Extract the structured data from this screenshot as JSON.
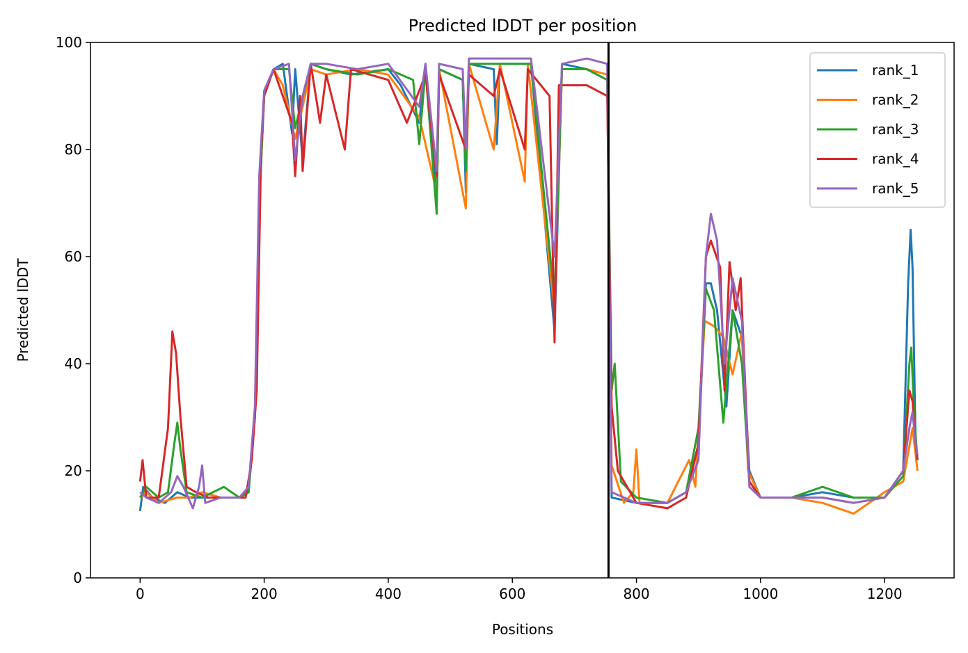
{
  "chart_data": {
    "type": "line",
    "title": "Predicted lDDT per position",
    "xlabel": "Positions",
    "ylabel": "Predicted lDDT",
    "xlim": [
      -80,
      1312
    ],
    "ylim": [
      0,
      100
    ],
    "xticks": [
      0,
      200,
      400,
      600,
      800,
      1000,
      1200
    ],
    "yticks": [
      0,
      20,
      40,
      60,
      80,
      100
    ],
    "grid": false,
    "legend_position": "top-right",
    "vertical_line": {
      "x": 755,
      "color": "#000000"
    },
    "series": [
      {
        "name": "rank_1",
        "color": "#1f77b4",
        "points": [
          [
            0,
            12.5
          ],
          [
            5,
            17
          ],
          [
            20,
            15
          ],
          [
            40,
            14
          ],
          [
            60,
            16
          ],
          [
            80,
            15
          ],
          [
            100,
            15
          ],
          [
            130,
            15
          ],
          [
            160,
            15
          ],
          [
            175,
            16
          ],
          [
            185,
            30
          ],
          [
            192,
            70
          ],
          [
            200,
            90
          ],
          [
            215,
            95
          ],
          [
            230,
            96
          ],
          [
            245,
            83
          ],
          [
            250,
            95
          ],
          [
            262,
            78
          ],
          [
            275,
            96
          ],
          [
            300,
            95
          ],
          [
            340,
            94
          ],
          [
            400,
            95
          ],
          [
            420,
            92
          ],
          [
            450,
            85
          ],
          [
            460,
            96
          ],
          [
            478,
            70
          ],
          [
            482,
            95
          ],
          [
            520,
            93
          ],
          [
            525,
            72
          ],
          [
            530,
            96
          ],
          [
            570,
            95
          ],
          [
            575,
            81
          ],
          [
            580,
            96
          ],
          [
            630,
            96
          ],
          [
            668,
            46
          ],
          [
            680,
            96
          ],
          [
            720,
            95
          ],
          [
            753,
            93
          ],
          [
            760,
            15
          ],
          [
            800,
            14
          ],
          [
            850,
            14
          ],
          [
            880,
            16
          ],
          [
            900,
            25
          ],
          [
            912,
            55
          ],
          [
            920,
            55
          ],
          [
            930,
            50
          ],
          [
            945,
            32
          ],
          [
            955,
            50
          ],
          [
            970,
            45
          ],
          [
            982,
            20
          ],
          [
            1000,
            15
          ],
          [
            1050,
            15
          ],
          [
            1100,
            16
          ],
          [
            1150,
            15
          ],
          [
            1200,
            15
          ],
          [
            1230,
            20
          ],
          [
            1238,
            55
          ],
          [
            1242,
            65
          ],
          [
            1245,
            58
          ],
          [
            1250,
            25
          ],
          [
            1253,
            22
          ]
        ]
      },
      {
        "name": "rank_2",
        "color": "#ff7f0e",
        "points": [
          [
            0,
            15
          ],
          [
            10,
            16
          ],
          [
            30,
            14
          ],
          [
            60,
            15
          ],
          [
            80,
            15
          ],
          [
            100,
            16
          ],
          [
            130,
            15
          ],
          [
            160,
            15
          ],
          [
            175,
            17
          ],
          [
            185,
            30
          ],
          [
            192,
            70
          ],
          [
            200,
            90
          ],
          [
            215,
            95
          ],
          [
            230,
            92
          ],
          [
            250,
            82
          ],
          [
            262,
            88
          ],
          [
            275,
            95
          ],
          [
            300,
            94
          ],
          [
            350,
            95
          ],
          [
            400,
            94
          ],
          [
            450,
            86
          ],
          [
            478,
            72
          ],
          [
            482,
            95
          ],
          [
            525,
            69
          ],
          [
            530,
            96
          ],
          [
            570,
            80
          ],
          [
            580,
            96
          ],
          [
            620,
            74
          ],
          [
            625,
            96
          ],
          [
            668,
            50
          ],
          [
            680,
            95
          ],
          [
            720,
            95
          ],
          [
            753,
            94
          ],
          [
            760,
            21
          ],
          [
            780,
            14
          ],
          [
            795,
            16
          ],
          [
            800,
            24
          ],
          [
            805,
            14
          ],
          [
            850,
            14
          ],
          [
            885,
            22
          ],
          [
            895,
            17
          ],
          [
            910,
            48
          ],
          [
            925,
            47
          ],
          [
            940,
            45
          ],
          [
            955,
            38
          ],
          [
            970,
            46
          ],
          [
            980,
            20
          ],
          [
            1000,
            15
          ],
          [
            1050,
            15
          ],
          [
            1100,
            14
          ],
          [
            1150,
            12
          ],
          [
            1200,
            16
          ],
          [
            1230,
            18
          ],
          [
            1245,
            28
          ],
          [
            1250,
            23
          ],
          [
            1253,
            20
          ]
        ]
      },
      {
        "name": "rank_3",
        "color": "#2ca02c",
        "points": [
          [
            0,
            15
          ],
          [
            10,
            17
          ],
          [
            30,
            15
          ],
          [
            45,
            16
          ],
          [
            55,
            25
          ],
          [
            60,
            29
          ],
          [
            65,
            24
          ],
          [
            75,
            16
          ],
          [
            100,
            15
          ],
          [
            135,
            17
          ],
          [
            160,
            15
          ],
          [
            175,
            16
          ],
          [
            185,
            30
          ],
          [
            192,
            70
          ],
          [
            200,
            90
          ],
          [
            215,
            95
          ],
          [
            240,
            95
          ],
          [
            250,
            84
          ],
          [
            275,
            96
          ],
          [
            300,
            95
          ],
          [
            350,
            94
          ],
          [
            400,
            95
          ],
          [
            440,
            93
          ],
          [
            450,
            81
          ],
          [
            460,
            95
          ],
          [
            478,
            68
          ],
          [
            482,
            95
          ],
          [
            520,
            93
          ],
          [
            525,
            76
          ],
          [
            530,
            96
          ],
          [
            580,
            96
          ],
          [
            630,
            96
          ],
          [
            668,
            52
          ],
          [
            680,
            95
          ],
          [
            720,
            95
          ],
          [
            753,
            93
          ],
          [
            760,
            35
          ],
          [
            765,
            40
          ],
          [
            775,
            18
          ],
          [
            800,
            15
          ],
          [
            850,
            14
          ],
          [
            880,
            16
          ],
          [
            900,
            28
          ],
          [
            912,
            54
          ],
          [
            925,
            50
          ],
          [
            940,
            29
          ],
          [
            955,
            50
          ],
          [
            970,
            40
          ],
          [
            982,
            18
          ],
          [
            1000,
            15
          ],
          [
            1050,
            15
          ],
          [
            1100,
            17
          ],
          [
            1150,
            15
          ],
          [
            1200,
            15
          ],
          [
            1230,
            19
          ],
          [
            1240,
            40
          ],
          [
            1243,
            43
          ],
          [
            1248,
            30
          ],
          [
            1253,
            22
          ]
        ]
      },
      {
        "name": "rank_4",
        "color": "#d62728",
        "points": [
          [
            0,
            18
          ],
          [
            4,
            22
          ],
          [
            10,
            15
          ],
          [
            30,
            15
          ],
          [
            45,
            28
          ],
          [
            52,
            46
          ],
          [
            58,
            42
          ],
          [
            65,
            30
          ],
          [
            75,
            17
          ],
          [
            90,
            16
          ],
          [
            110,
            15
          ],
          [
            140,
            15
          ],
          [
            170,
            15
          ],
          [
            180,
            22
          ],
          [
            188,
            35
          ],
          [
            195,
            80
          ],
          [
            200,
            90
          ],
          [
            215,
            95
          ],
          [
            245,
            85
          ],
          [
            250,
            75
          ],
          [
            258,
            90
          ],
          [
            262,
            76
          ],
          [
            275,
            96
          ],
          [
            290,
            85
          ],
          [
            300,
            94
          ],
          [
            330,
            80
          ],
          [
            340,
            95
          ],
          [
            400,
            93
          ],
          [
            430,
            85
          ],
          [
            460,
            94
          ],
          [
            478,
            75
          ],
          [
            482,
            94
          ],
          [
            525,
            80
          ],
          [
            530,
            94
          ],
          [
            570,
            90
          ],
          [
            580,
            95
          ],
          [
            620,
            80
          ],
          [
            625,
            95
          ],
          [
            660,
            90
          ],
          [
            668,
            44
          ],
          [
            675,
            92
          ],
          [
            720,
            92
          ],
          [
            753,
            90
          ],
          [
            760,
            32
          ],
          [
            770,
            20
          ],
          [
            800,
            14
          ],
          [
            850,
            13
          ],
          [
            880,
            15
          ],
          [
            900,
            25
          ],
          [
            912,
            60
          ],
          [
            920,
            63
          ],
          [
            935,
            58
          ],
          [
            942,
            35
          ],
          [
            950,
            59
          ],
          [
            960,
            50
          ],
          [
            968,
            56
          ],
          [
            982,
            18
          ],
          [
            1000,
            15
          ],
          [
            1050,
            15
          ],
          [
            1100,
            15
          ],
          [
            1150,
            14
          ],
          [
            1200,
            15
          ],
          [
            1230,
            20
          ],
          [
            1240,
            35
          ],
          [
            1245,
            33
          ],
          [
            1250,
            25
          ],
          [
            1253,
            22
          ]
        ]
      },
      {
        "name": "rank_5",
        "color": "#9467bd",
        "points": [
          [
            0,
            16
          ],
          [
            10,
            15
          ],
          [
            30,
            14
          ],
          [
            50,
            16
          ],
          [
            60,
            19
          ],
          [
            70,
            17
          ],
          [
            85,
            13
          ],
          [
            95,
            17
          ],
          [
            100,
            21
          ],
          [
            105,
            14
          ],
          [
            130,
            15
          ],
          [
            160,
            15
          ],
          [
            175,
            17
          ],
          [
            185,
            32
          ],
          [
            192,
            75
          ],
          [
            200,
            91
          ],
          [
            215,
            95
          ],
          [
            240,
            96
          ],
          [
            250,
            78
          ],
          [
            262,
            90
          ],
          [
            275,
            96
          ],
          [
            300,
            96
          ],
          [
            350,
            95
          ],
          [
            400,
            96
          ],
          [
            450,
            88
          ],
          [
            460,
            96
          ],
          [
            478,
            76
          ],
          [
            482,
            96
          ],
          [
            520,
            95
          ],
          [
            525,
            80
          ],
          [
            530,
            97
          ],
          [
            580,
            97
          ],
          [
            630,
            97
          ],
          [
            668,
            60
          ],
          [
            680,
            96
          ],
          [
            720,
            97
          ],
          [
            753,
            96
          ],
          [
            760,
            16
          ],
          [
            800,
            14
          ],
          [
            850,
            14
          ],
          [
            880,
            16
          ],
          [
            900,
            22
          ],
          [
            912,
            60
          ],
          [
            920,
            68
          ],
          [
            930,
            63
          ],
          [
            942,
            40
          ],
          [
            955,
            56
          ],
          [
            970,
            48
          ],
          [
            982,
            17
          ],
          [
            1000,
            15
          ],
          [
            1050,
            15
          ],
          [
            1100,
            15
          ],
          [
            1150,
            14
          ],
          [
            1200,
            15
          ],
          [
            1230,
            20
          ],
          [
            1240,
            28
          ],
          [
            1245,
            31
          ],
          [
            1250,
            25
          ],
          [
            1253,
            23
          ]
        ]
      }
    ]
  }
}
